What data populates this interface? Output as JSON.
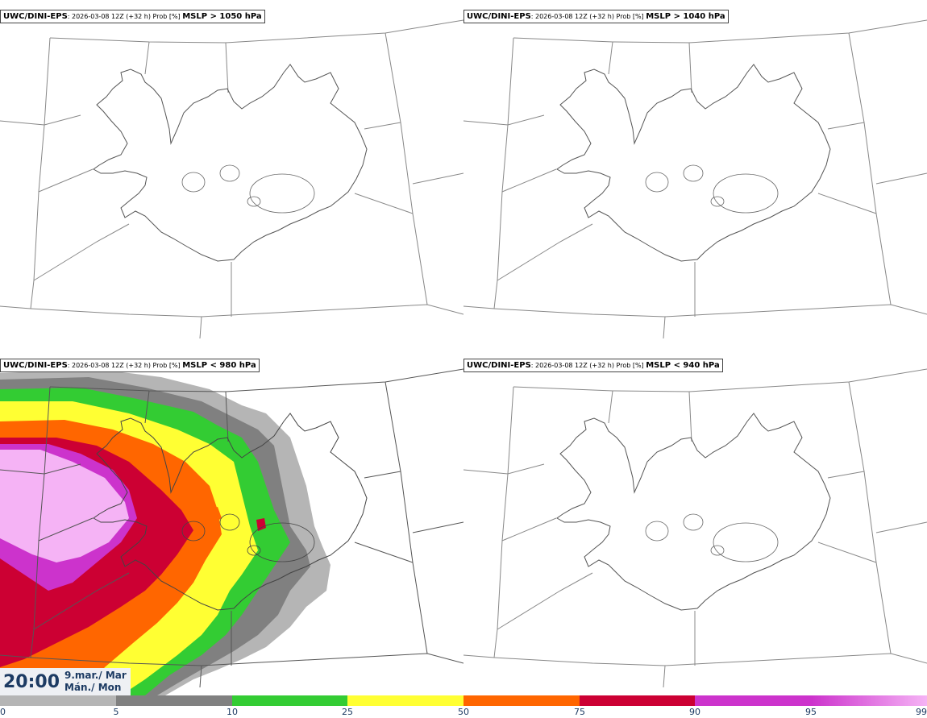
{
  "panels": [
    {
      "model": "UWC/DINI-EPS",
      "meta": ": 2026-03-08 12Z (+32 h) Prob [%] ",
      "param": "MSLP > 1050 hPa",
      "filled": false
    },
    {
      "model": "UWC/DINI-EPS",
      "meta": ": 2026-03-08 12Z (+32 h) Prob [%] ",
      "param": "MSLP > 1040 hPa",
      "filled": false
    },
    {
      "model": "UWC/DINI-EPS",
      "meta": ": 2026-03-08 12Z (+32 h) Prob [%] ",
      "param": "MSLP < 980 hPa",
      "filled": true
    },
    {
      "model": "UWC/DINI-EPS",
      "meta": ": 2026-03-08 12Z (+32 h) Prob [%] ",
      "param": "MSLP < 940 hPa",
      "filled": false
    }
  ],
  "time": {
    "clock": "20:00",
    "date_line1": "9.mar./ Mar",
    "date_line2": "Mán./ Mon"
  },
  "colorbar": {
    "ticks": [
      "0",
      "5",
      "10",
      "25",
      "50",
      "75",
      "90",
      "95",
      "99"
    ],
    "colors": [
      "#ffffff",
      "#b5b5b5",
      "#808080",
      "#33cc33",
      "#ffff33",
      "#ff6600",
      "#cc0033",
      "#cc33cc",
      "#f5b3f5"
    ]
  }
}
